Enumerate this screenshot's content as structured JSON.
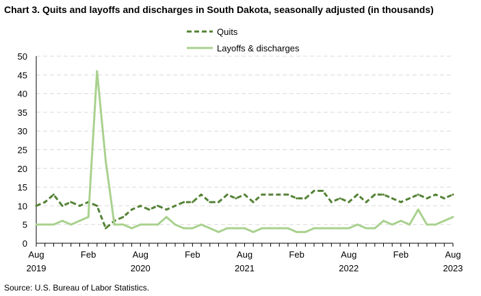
{
  "chart_data": {
    "type": "line",
    "title": "Chart 3. Quits and layoffs and discharges in South Dakota, seasonally adjusted (in thousands)",
    "source": "Source: U.S. Bureau of Labor Statistics.",
    "x_start": "Aug 2019",
    "x_end": "Aug 2023",
    "x_frequency": "monthly",
    "x_tick_labels": [
      [
        "Aug",
        "2019"
      ],
      [
        "Feb",
        ""
      ],
      [
        "Aug",
        "2020"
      ],
      [
        "Feb",
        ""
      ],
      [
        "Aug",
        "2021"
      ],
      [
        "Feb",
        ""
      ],
      [
        "Aug",
        "2022"
      ],
      [
        "Feb",
        ""
      ],
      [
        "Aug",
        "2023"
      ]
    ],
    "ylim": [
      0,
      50
    ],
    "y_ticks": [
      0,
      5,
      10,
      15,
      20,
      25,
      30,
      35,
      40,
      45,
      50
    ],
    "grid": true,
    "legend": "top-center",
    "series": [
      {
        "name": "Quits",
        "color": "#548235",
        "style": "dashed",
        "values": [
          10,
          11,
          13,
          10,
          11,
          10,
          11,
          10,
          4,
          6,
          7,
          9,
          10,
          9,
          10,
          9,
          10,
          11,
          11,
          13,
          11,
          11,
          13,
          12,
          13,
          11,
          13,
          13,
          13,
          13,
          12,
          12,
          14,
          14,
          11,
          12,
          11,
          13,
          11,
          13,
          13,
          12,
          11,
          12,
          13,
          12,
          13,
          12,
          13
        ]
      },
      {
        "name": "Layoffs & discharges",
        "color": "#a9d18e",
        "style": "solid",
        "values": [
          5,
          5,
          5,
          6,
          5,
          6,
          7,
          46,
          22,
          5,
          5,
          4,
          5,
          5,
          5,
          7,
          5,
          4,
          4,
          5,
          4,
          3,
          4,
          4,
          4,
          3,
          4,
          4,
          4,
          4,
          3,
          3,
          4,
          4,
          4,
          4,
          4,
          5,
          4,
          4,
          6,
          5,
          6,
          5,
          9,
          5,
          5,
          6,
          7
        ]
      }
    ]
  }
}
